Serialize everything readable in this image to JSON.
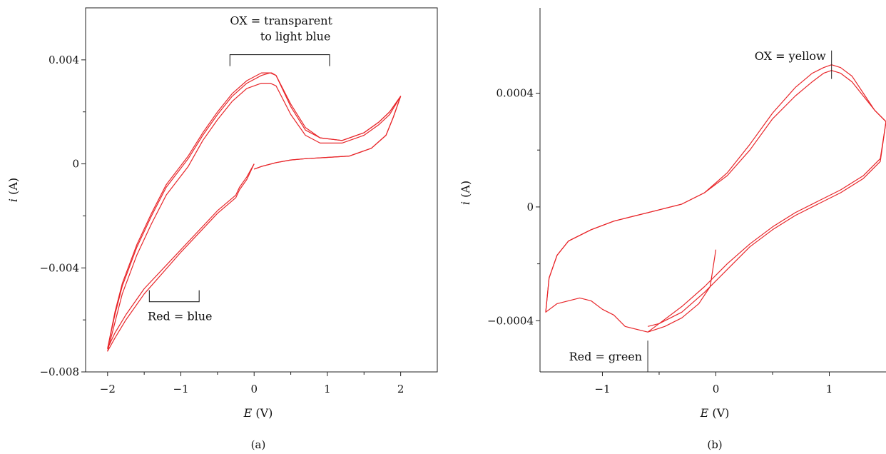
{
  "figure": {
    "caption_a": "(a)",
    "caption_b": "(b)"
  },
  "chart_data": [
    {
      "type": "line",
      "panel": "(a)",
      "xlabel_italic": "E",
      "xlabel_unit": " (V)",
      "ylabel_italic": "i",
      "ylabel_unit": " (A)",
      "xlim": [
        -2.3,
        2.5
      ],
      "ylim": [
        -0.008,
        0.006
      ],
      "xticks": [
        -2,
        -1,
        0,
        1,
        2
      ],
      "xtick_labels": [
        "−2",
        "−1",
        "0",
        "1",
        "2"
      ],
      "yticks": [
        -0.008,
        -0.004,
        0,
        0.004
      ],
      "ytick_labels": [
        "−0.008",
        "−0.004",
        "0",
        "0.004"
      ],
      "grid": false,
      "color": "#e8262a",
      "annotations": [
        {
          "lines": [
            "OX = transparent",
            "to light blue"
          ],
          "bracket_x": [
            -0.33,
            1.03
          ],
          "bracket_y": 0.0042
        },
        {
          "lines": [
            "Red = blue"
          ],
          "bracket_x": [
            -1.43,
            -0.75
          ],
          "bracket_y": -0.0053
        }
      ],
      "series": [
        {
          "x": [
            0.0,
            -0.1,
            -0.2,
            -0.25,
            -0.5,
            -1.0,
            -1.5,
            -1.75,
            -1.9,
            -2.0,
            -1.9,
            -1.8,
            -1.6,
            -1.4,
            -1.2,
            -0.9,
            -0.7,
            -0.5,
            -0.3,
            -0.1,
            0.1,
            0.22,
            0.3,
            0.5,
            0.7,
            0.9,
            1.2,
            1.5,
            1.7,
            1.85,
            2.0,
            1.9,
            1.8,
            1.6,
            1.3,
            1.0,
            0.7,
            0.5,
            0.3,
            0.1,
            0.0
          ],
          "y": [
            0.0,
            -0.0005,
            -0.0009,
            -0.0012,
            -0.0018,
            -0.0033,
            -0.0048,
            -0.0058,
            -0.0065,
            -0.0071,
            -0.0058,
            -0.0047,
            -0.0032,
            -0.002,
            -0.0009,
            0.0002,
            0.0011,
            0.0019,
            0.0026,
            0.0031,
            0.0034,
            0.0035,
            0.0034,
            0.0022,
            0.0013,
            0.001,
            0.0009,
            0.0012,
            0.0016,
            0.002,
            0.0026,
            0.0018,
            0.0011,
            0.0006,
            0.0003,
            0.00025,
            0.0002,
            0.00015,
            5e-05,
            -0.0001,
            -0.0002
          ]
        },
        {
          "x": [
            0.0,
            -0.1,
            -0.2,
            -0.25,
            -0.5,
            -1.0,
            -1.5,
            -1.75,
            -1.9,
            -2.0,
            -1.9,
            -1.8,
            -1.6,
            -1.4,
            -1.2,
            -0.9,
            -0.7,
            -0.5,
            -0.3,
            -0.1,
            0.1,
            0.22,
            0.3,
            0.5,
            0.7,
            0.9,
            1.2,
            1.5,
            1.7,
            1.85,
            2.0,
            1.9,
            1.8,
            1.6,
            1.3,
            1.0,
            0.7,
            0.5,
            0.3,
            0.1,
            0.0
          ],
          "y": [
            0.0,
            -0.0006,
            -0.001,
            -0.0013,
            -0.0019,
            -0.0034,
            -0.005,
            -0.006,
            -0.0067,
            -0.0072,
            -0.0061,
            -0.005,
            -0.0035,
            -0.0023,
            -0.0012,
            -0.0001,
            0.0009,
            0.0017,
            0.0024,
            0.0029,
            0.0031,
            0.0031,
            0.003,
            0.0019,
            0.0011,
            0.0008,
            0.0008,
            0.0011,
            0.0015,
            0.0019,
            0.0026,
            0.0018,
            0.0011,
            0.0006,
            0.0003,
            0.00025,
            0.0002,
            0.00015,
            5e-05,
            -0.0001,
            -0.0002
          ]
        },
        {
          "x": [
            -2.0,
            -1.9,
            -1.8,
            -1.6,
            -1.4,
            -1.2,
            -0.9,
            -0.7,
            -0.5,
            -0.3,
            -0.1,
            0.1,
            0.24,
            0.3,
            0.5,
            0.7,
            0.9,
            1.2,
            1.5,
            1.7,
            1.85,
            2.0
          ],
          "y": [
            -0.0071,
            -0.0057,
            -0.0046,
            -0.0031,
            -0.0019,
            -0.0008,
            0.0003,
            0.0012,
            0.002,
            0.0027,
            0.0032,
            0.0035,
            0.0035,
            0.0034,
            0.0023,
            0.0014,
            0.001,
            0.0009,
            0.0012,
            0.0016,
            0.002,
            0.0026
          ]
        }
      ]
    },
    {
      "type": "line",
      "panel": "(b)",
      "xlabel_italic": "E",
      "xlabel_unit": " (V)",
      "ylabel_italic": "i",
      "ylabel_unit": " (A)",
      "xlim": [
        -1.55,
        1.5
      ],
      "ylim": [
        -0.00058,
        0.0007
      ],
      "xticks": [
        -1,
        0,
        1
      ],
      "xtick_labels": [
        "−1",
        "0",
        "1"
      ],
      "yticks": [
        -0.0004,
        0,
        0.0004
      ],
      "ytick_labels": [
        "−0.0004",
        "0",
        "0.0004"
      ],
      "grid": false,
      "color": "#e8262a",
      "annotations": [
        {
          "lines": [
            "OX = yellow"
          ],
          "marker_x": 1.02,
          "marker_y": [
            0.00045,
            0.00055
          ]
        },
        {
          "lines": [
            "Red = green"
          ],
          "marker_x": -0.6,
          "marker_y": [
            -0.00047,
            -0.00058
          ]
        }
      ],
      "series": [
        {
          "x": [
            0.0,
            -0.05,
            -0.15,
            -0.3,
            -0.45,
            -0.6,
            -0.8,
            -0.9,
            -1.0,
            -1.1,
            -1.2,
            -1.3,
            -1.4,
            -1.5,
            -1.47,
            -1.4,
            -1.3,
            -1.1,
            -0.9,
            -0.6,
            -0.3,
            -0.1,
            0.1,
            0.3,
            0.5,
            0.7,
            0.85,
            0.95,
            1.02,
            1.1,
            1.2,
            1.3,
            1.4,
            1.5,
            1.45,
            1.3,
            1.1,
            0.9,
            0.7,
            0.5,
            0.3,
            0.1,
            -0.1,
            -0.3,
            -0.5,
            -0.6
          ],
          "y": [
            -0.00015,
            -0.00028,
            -0.00034,
            -0.00039,
            -0.00042,
            -0.00044,
            -0.00042,
            -0.00038,
            -0.00036,
            -0.00033,
            -0.00032,
            -0.00033,
            -0.00034,
            -0.00037,
            -0.00025,
            -0.00017,
            -0.00012,
            -8e-05,
            -5e-05,
            -2e-05,
            1e-05,
            5e-05,
            0.00012,
            0.00022,
            0.00033,
            0.00042,
            0.00047,
            0.00049,
            0.0005,
            0.00049,
            0.00046,
            0.0004,
            0.00034,
            0.0003,
            0.00017,
            0.00011,
            6e-05,
            2e-05,
            -2e-05,
            -7e-05,
            -0.00013,
            -0.0002,
            -0.00028,
            -0.00035,
            -0.00041,
            -0.00044
          ]
        },
        {
          "x": [
            -1.5,
            -1.47,
            -1.4,
            -1.3,
            -1.1,
            -0.9,
            -0.6,
            -0.3,
            -0.1,
            0.1,
            0.3,
            0.5,
            0.7,
            0.85,
            0.95,
            1.02,
            1.1,
            1.2,
            1.3,
            1.4,
            1.5,
            1.45,
            1.3,
            1.1,
            0.9,
            0.7,
            0.5,
            0.3,
            0.1,
            -0.1,
            -0.3,
            -0.5,
            -0.6
          ],
          "y": [
            -0.00037,
            -0.00025,
            -0.00017,
            -0.00012,
            -8e-05,
            -5e-05,
            -2e-05,
            1e-05,
            5e-05,
            0.00011,
            0.0002,
            0.00031,
            0.00039,
            0.00044,
            0.00047,
            0.00048,
            0.00047,
            0.00044,
            0.00039,
            0.00034,
            0.0003,
            0.00016,
            0.0001,
            5e-05,
            1e-05,
            -3e-05,
            -8e-05,
            -0.00014,
            -0.00022,
            -0.0003,
            -0.00037,
            -0.00041,
            -0.00042
          ]
        }
      ]
    }
  ]
}
